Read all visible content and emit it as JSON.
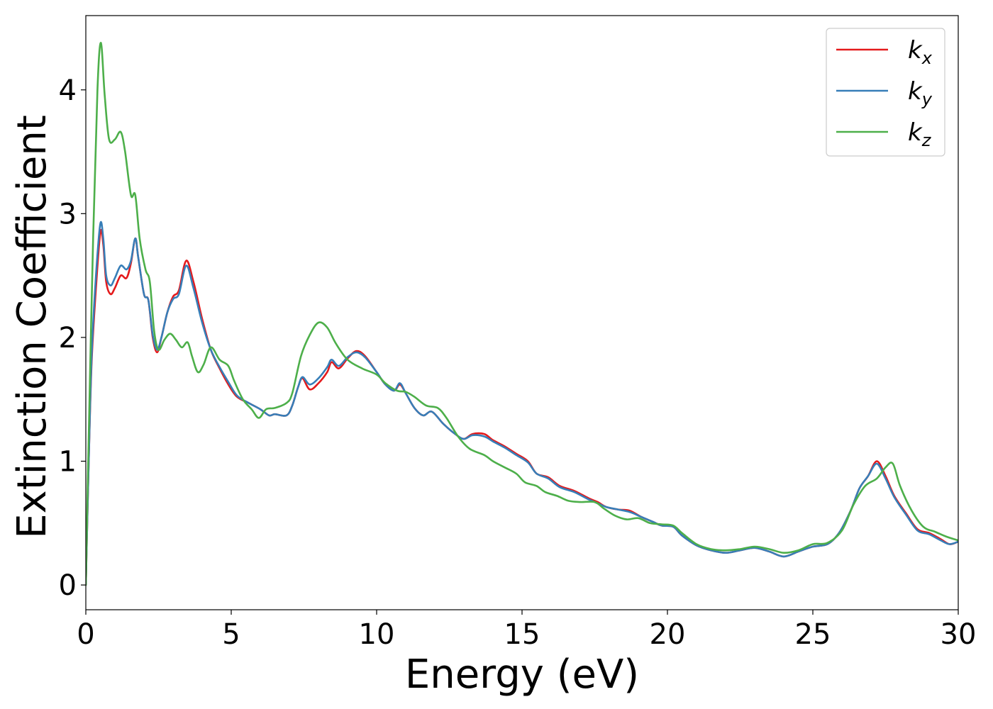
{
  "chart_data": {
    "type": "line",
    "title": "",
    "xlabel": "Energy (eV)",
    "ylabel": "Extinction Coefficient",
    "xlim": [
      0,
      30
    ],
    "ylim": [
      -0.2,
      4.6
    ],
    "grid": false,
    "legend_position": "top-right",
    "x_ticks": [
      {
        "value": 0,
        "label": "0"
      },
      {
        "value": 5,
        "label": "5"
      },
      {
        "value": 10,
        "label": "10"
      },
      {
        "value": 15,
        "label": "15"
      },
      {
        "value": 20,
        "label": "20"
      },
      {
        "value": 25,
        "label": "25"
      },
      {
        "value": 30,
        "label": "30"
      }
    ],
    "y_ticks": [
      {
        "value": 0,
        "label": "0"
      },
      {
        "value": 1,
        "label": "1"
      },
      {
        "value": 2,
        "label": "2"
      },
      {
        "value": 3,
        "label": "3"
      },
      {
        "value": 4,
        "label": "4"
      }
    ],
    "series": [
      {
        "name": "k",
        "subscript": "x",
        "color": "#e41a1c",
        "points": [
          [
            0,
            0
          ],
          [
            0.1,
            1.0
          ],
          [
            0.2,
            1.8
          ],
          [
            0.35,
            2.4
          ],
          [
            0.5,
            2.85
          ],
          [
            0.6,
            2.75
          ],
          [
            0.7,
            2.45
          ],
          [
            0.85,
            2.35
          ],
          [
            1.0,
            2.4
          ],
          [
            1.2,
            2.5
          ],
          [
            1.4,
            2.48
          ],
          [
            1.55,
            2.6
          ],
          [
            1.7,
            2.8
          ],
          [
            1.8,
            2.65
          ],
          [
            2.0,
            2.35
          ],
          [
            2.15,
            2.3
          ],
          [
            2.3,
            2.0
          ],
          [
            2.45,
            1.88
          ],
          [
            2.6,
            2.0
          ],
          [
            2.8,
            2.2
          ],
          [
            3.0,
            2.33
          ],
          [
            3.2,
            2.38
          ],
          [
            3.45,
            2.62
          ],
          [
            3.7,
            2.45
          ],
          [
            4.0,
            2.15
          ],
          [
            4.3,
            1.9
          ],
          [
            4.6,
            1.75
          ],
          [
            4.9,
            1.62
          ],
          [
            5.2,
            1.52
          ],
          [
            5.6,
            1.47
          ],
          [
            6.0,
            1.42
          ],
          [
            6.3,
            1.37
          ],
          [
            6.5,
            1.38
          ],
          [
            6.9,
            1.37
          ],
          [
            7.1,
            1.45
          ],
          [
            7.3,
            1.6
          ],
          [
            7.45,
            1.67
          ],
          [
            7.7,
            1.58
          ],
          [
            8.0,
            1.63
          ],
          [
            8.3,
            1.72
          ],
          [
            8.45,
            1.8
          ],
          [
            8.7,
            1.75
          ],
          [
            9.0,
            1.83
          ],
          [
            9.3,
            1.89
          ],
          [
            9.6,
            1.85
          ],
          [
            10.0,
            1.72
          ],
          [
            10.3,
            1.62
          ],
          [
            10.6,
            1.57
          ],
          [
            10.8,
            1.62
          ],
          [
            11.0,
            1.55
          ],
          [
            11.3,
            1.43
          ],
          [
            11.6,
            1.37
          ],
          [
            11.9,
            1.4
          ],
          [
            12.3,
            1.3
          ],
          [
            12.7,
            1.22
          ],
          [
            13.0,
            1.18
          ],
          [
            13.3,
            1.22
          ],
          [
            13.7,
            1.22
          ],
          [
            14.0,
            1.17
          ],
          [
            14.4,
            1.12
          ],
          [
            14.8,
            1.06
          ],
          [
            15.2,
            1.0
          ],
          [
            15.5,
            0.9
          ],
          [
            15.9,
            0.87
          ],
          [
            16.3,
            0.8
          ],
          [
            16.8,
            0.76
          ],
          [
            17.3,
            0.7
          ],
          [
            17.6,
            0.67
          ],
          [
            17.9,
            0.63
          ],
          [
            18.3,
            0.61
          ],
          [
            18.7,
            0.6
          ],
          [
            19.1,
            0.55
          ],
          [
            19.5,
            0.51
          ],
          [
            19.8,
            0.48
          ],
          [
            20.2,
            0.47
          ],
          [
            20.5,
            0.4
          ],
          [
            21.0,
            0.32
          ],
          [
            21.5,
            0.28
          ],
          [
            22.0,
            0.26
          ],
          [
            22.5,
            0.28
          ],
          [
            23.0,
            0.3
          ],
          [
            23.5,
            0.27
          ],
          [
            24.0,
            0.23
          ],
          [
            24.5,
            0.27
          ],
          [
            25.0,
            0.31
          ],
          [
            25.5,
            0.33
          ],
          [
            25.9,
            0.42
          ],
          [
            26.3,
            0.6
          ],
          [
            26.6,
            0.78
          ],
          [
            26.9,
            0.88
          ],
          [
            27.2,
            1.0
          ],
          [
            27.5,
            0.88
          ],
          [
            27.8,
            0.72
          ],
          [
            28.2,
            0.58
          ],
          [
            28.6,
            0.45
          ],
          [
            29.0,
            0.42
          ],
          [
            29.4,
            0.37
          ],
          [
            29.7,
            0.33
          ],
          [
            30.0,
            0.35
          ]
        ]
      },
      {
        "name": "k",
        "subscript": "y",
        "color": "#377eb8",
        "points": [
          [
            0,
            0
          ],
          [
            0.1,
            1.0
          ],
          [
            0.2,
            1.85
          ],
          [
            0.35,
            2.5
          ],
          [
            0.5,
            2.92
          ],
          [
            0.6,
            2.8
          ],
          [
            0.7,
            2.5
          ],
          [
            0.85,
            2.42
          ],
          [
            1.0,
            2.48
          ],
          [
            1.2,
            2.58
          ],
          [
            1.4,
            2.55
          ],
          [
            1.55,
            2.62
          ],
          [
            1.7,
            2.8
          ],
          [
            1.8,
            2.65
          ],
          [
            2.0,
            2.35
          ],
          [
            2.15,
            2.3
          ],
          [
            2.3,
            2.02
          ],
          [
            2.45,
            1.9
          ],
          [
            2.6,
            2.0
          ],
          [
            2.8,
            2.2
          ],
          [
            3.0,
            2.31
          ],
          [
            3.2,
            2.35
          ],
          [
            3.45,
            2.58
          ],
          [
            3.7,
            2.4
          ],
          [
            4.0,
            2.12
          ],
          [
            4.3,
            1.9
          ],
          [
            4.6,
            1.76
          ],
          [
            4.9,
            1.64
          ],
          [
            5.2,
            1.53
          ],
          [
            5.6,
            1.47
          ],
          [
            6.0,
            1.42
          ],
          [
            6.3,
            1.37
          ],
          [
            6.5,
            1.38
          ],
          [
            6.9,
            1.37
          ],
          [
            7.1,
            1.45
          ],
          [
            7.3,
            1.6
          ],
          [
            7.45,
            1.68
          ],
          [
            7.7,
            1.62
          ],
          [
            8.0,
            1.67
          ],
          [
            8.3,
            1.76
          ],
          [
            8.45,
            1.82
          ],
          [
            8.7,
            1.77
          ],
          [
            9.0,
            1.84
          ],
          [
            9.3,
            1.88
          ],
          [
            9.6,
            1.84
          ],
          [
            10.0,
            1.72
          ],
          [
            10.3,
            1.62
          ],
          [
            10.6,
            1.57
          ],
          [
            10.8,
            1.63
          ],
          [
            11.0,
            1.55
          ],
          [
            11.3,
            1.43
          ],
          [
            11.6,
            1.37
          ],
          [
            11.9,
            1.4
          ],
          [
            12.3,
            1.3
          ],
          [
            12.7,
            1.22
          ],
          [
            13.0,
            1.18
          ],
          [
            13.3,
            1.21
          ],
          [
            13.7,
            1.2
          ],
          [
            14.0,
            1.16
          ],
          [
            14.4,
            1.11
          ],
          [
            14.8,
            1.05
          ],
          [
            15.2,
            0.99
          ],
          [
            15.5,
            0.9
          ],
          [
            15.9,
            0.86
          ],
          [
            16.3,
            0.79
          ],
          [
            16.8,
            0.75
          ],
          [
            17.3,
            0.69
          ],
          [
            17.6,
            0.66
          ],
          [
            17.9,
            0.63
          ],
          [
            18.3,
            0.61
          ],
          [
            18.7,
            0.59
          ],
          [
            19.1,
            0.55
          ],
          [
            19.5,
            0.51
          ],
          [
            19.8,
            0.48
          ],
          [
            20.2,
            0.47
          ],
          [
            20.5,
            0.4
          ],
          [
            21.0,
            0.32
          ],
          [
            21.5,
            0.28
          ],
          [
            22.0,
            0.26
          ],
          [
            22.5,
            0.28
          ],
          [
            23.0,
            0.3
          ],
          [
            23.5,
            0.27
          ],
          [
            24.0,
            0.23
          ],
          [
            24.5,
            0.27
          ],
          [
            25.0,
            0.31
          ],
          [
            25.5,
            0.33
          ],
          [
            25.9,
            0.42
          ],
          [
            26.3,
            0.6
          ],
          [
            26.6,
            0.78
          ],
          [
            26.9,
            0.88
          ],
          [
            27.2,
            0.98
          ],
          [
            27.5,
            0.86
          ],
          [
            27.8,
            0.71
          ],
          [
            28.2,
            0.57
          ],
          [
            28.6,
            0.44
          ],
          [
            29.0,
            0.41
          ],
          [
            29.4,
            0.36
          ],
          [
            29.7,
            0.33
          ],
          [
            30.0,
            0.35
          ]
        ]
      },
      {
        "name": "k",
        "subscript": "z",
        "color": "#4daf4a",
        "points": [
          [
            0,
            0
          ],
          [
            0.1,
            1.2
          ],
          [
            0.25,
            2.8
          ],
          [
            0.4,
            4.0
          ],
          [
            0.52,
            4.38
          ],
          [
            0.65,
            3.95
          ],
          [
            0.8,
            3.6
          ],
          [
            1.0,
            3.6
          ],
          [
            1.2,
            3.66
          ],
          [
            1.35,
            3.5
          ],
          [
            1.55,
            3.15
          ],
          [
            1.7,
            3.15
          ],
          [
            1.85,
            2.8
          ],
          [
            2.05,
            2.55
          ],
          [
            2.2,
            2.45
          ],
          [
            2.35,
            2.05
          ],
          [
            2.5,
            1.9
          ],
          [
            2.7,
            1.98
          ],
          [
            2.9,
            2.03
          ],
          [
            3.1,
            1.98
          ],
          [
            3.3,
            1.92
          ],
          [
            3.5,
            1.96
          ],
          [
            3.65,
            1.85
          ],
          [
            3.85,
            1.72
          ],
          [
            4.05,
            1.78
          ],
          [
            4.3,
            1.92
          ],
          [
            4.6,
            1.82
          ],
          [
            4.9,
            1.77
          ],
          [
            5.1,
            1.65
          ],
          [
            5.4,
            1.5
          ],
          [
            5.7,
            1.42
          ],
          [
            5.95,
            1.35
          ],
          [
            6.2,
            1.42
          ],
          [
            6.5,
            1.43
          ],
          [
            6.9,
            1.47
          ],
          [
            7.1,
            1.55
          ],
          [
            7.4,
            1.85
          ],
          [
            7.7,
            2.02
          ],
          [
            8.0,
            2.12
          ],
          [
            8.3,
            2.08
          ],
          [
            8.6,
            1.95
          ],
          [
            9.0,
            1.82
          ],
          [
            9.5,
            1.75
          ],
          [
            10.0,
            1.7
          ],
          [
            10.3,
            1.63
          ],
          [
            10.7,
            1.57
          ],
          [
            11.0,
            1.56
          ],
          [
            11.3,
            1.52
          ],
          [
            11.7,
            1.45
          ],
          [
            12.1,
            1.43
          ],
          [
            12.4,
            1.35
          ],
          [
            12.8,
            1.2
          ],
          [
            13.2,
            1.1
          ],
          [
            13.7,
            1.05
          ],
          [
            14.0,
            1.0
          ],
          [
            14.4,
            0.95
          ],
          [
            14.8,
            0.9
          ],
          [
            15.1,
            0.83
          ],
          [
            15.5,
            0.8
          ],
          [
            15.8,
            0.75
          ],
          [
            16.2,
            0.72
          ],
          [
            16.6,
            0.68
          ],
          [
            17.0,
            0.67
          ],
          [
            17.5,
            0.67
          ],
          [
            17.8,
            0.62
          ],
          [
            18.2,
            0.56
          ],
          [
            18.6,
            0.53
          ],
          [
            19.0,
            0.54
          ],
          [
            19.4,
            0.5
          ],
          [
            19.8,
            0.49
          ],
          [
            20.2,
            0.48
          ],
          [
            20.5,
            0.42
          ],
          [
            21.0,
            0.33
          ],
          [
            21.5,
            0.29
          ],
          [
            22.0,
            0.28
          ],
          [
            22.5,
            0.29
          ],
          [
            23.0,
            0.31
          ],
          [
            23.5,
            0.29
          ],
          [
            24.0,
            0.26
          ],
          [
            24.5,
            0.28
          ],
          [
            25.0,
            0.33
          ],
          [
            25.5,
            0.34
          ],
          [
            26.0,
            0.44
          ],
          [
            26.4,
            0.65
          ],
          [
            26.8,
            0.8
          ],
          [
            27.2,
            0.86
          ],
          [
            27.5,
            0.95
          ],
          [
            27.75,
            0.98
          ],
          [
            28.0,
            0.8
          ],
          [
            28.4,
            0.6
          ],
          [
            28.8,
            0.47
          ],
          [
            29.2,
            0.43
          ],
          [
            29.6,
            0.39
          ],
          [
            30.0,
            0.36
          ]
        ]
      }
    ]
  }
}
